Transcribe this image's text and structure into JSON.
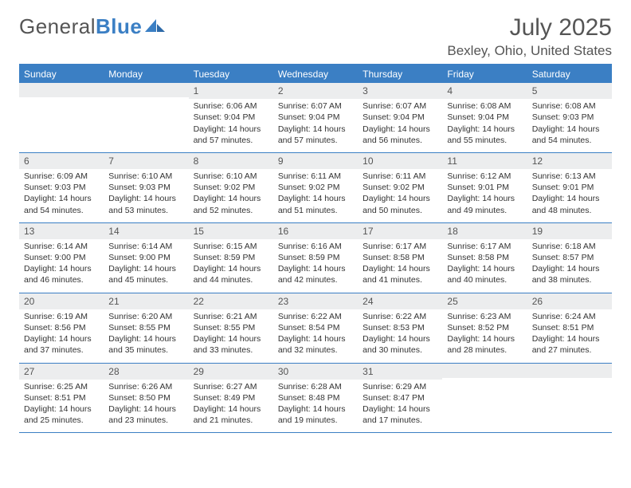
{
  "logo": {
    "text1": "General",
    "text2": "Blue"
  },
  "title": "July 2025",
  "location": "Bexley, Ohio, United States",
  "day_names": [
    "Sunday",
    "Monday",
    "Tuesday",
    "Wednesday",
    "Thursday",
    "Friday",
    "Saturday"
  ],
  "colors": {
    "accent": "#3b7fc4",
    "header_bg": "#3b7fc4",
    "header_text": "#ffffff",
    "daynum_bg": "#ecedee",
    "text": "#333333",
    "page_bg": "#ffffff"
  },
  "weeks": [
    [
      {
        "n": "",
        "sr": "",
        "ss": "",
        "dl": ""
      },
      {
        "n": "",
        "sr": "",
        "ss": "",
        "dl": ""
      },
      {
        "n": "1",
        "sr": "Sunrise: 6:06 AM",
        "ss": "Sunset: 9:04 PM",
        "dl": "Daylight: 14 hours and 57 minutes."
      },
      {
        "n": "2",
        "sr": "Sunrise: 6:07 AM",
        "ss": "Sunset: 9:04 PM",
        "dl": "Daylight: 14 hours and 57 minutes."
      },
      {
        "n": "3",
        "sr": "Sunrise: 6:07 AM",
        "ss": "Sunset: 9:04 PM",
        "dl": "Daylight: 14 hours and 56 minutes."
      },
      {
        "n": "4",
        "sr": "Sunrise: 6:08 AM",
        "ss": "Sunset: 9:04 PM",
        "dl": "Daylight: 14 hours and 55 minutes."
      },
      {
        "n": "5",
        "sr": "Sunrise: 6:08 AM",
        "ss": "Sunset: 9:03 PM",
        "dl": "Daylight: 14 hours and 54 minutes."
      }
    ],
    [
      {
        "n": "6",
        "sr": "Sunrise: 6:09 AM",
        "ss": "Sunset: 9:03 PM",
        "dl": "Daylight: 14 hours and 54 minutes."
      },
      {
        "n": "7",
        "sr": "Sunrise: 6:10 AM",
        "ss": "Sunset: 9:03 PM",
        "dl": "Daylight: 14 hours and 53 minutes."
      },
      {
        "n": "8",
        "sr": "Sunrise: 6:10 AM",
        "ss": "Sunset: 9:02 PM",
        "dl": "Daylight: 14 hours and 52 minutes."
      },
      {
        "n": "9",
        "sr": "Sunrise: 6:11 AM",
        "ss": "Sunset: 9:02 PM",
        "dl": "Daylight: 14 hours and 51 minutes."
      },
      {
        "n": "10",
        "sr": "Sunrise: 6:11 AM",
        "ss": "Sunset: 9:02 PM",
        "dl": "Daylight: 14 hours and 50 minutes."
      },
      {
        "n": "11",
        "sr": "Sunrise: 6:12 AM",
        "ss": "Sunset: 9:01 PM",
        "dl": "Daylight: 14 hours and 49 minutes."
      },
      {
        "n": "12",
        "sr": "Sunrise: 6:13 AM",
        "ss": "Sunset: 9:01 PM",
        "dl": "Daylight: 14 hours and 48 minutes."
      }
    ],
    [
      {
        "n": "13",
        "sr": "Sunrise: 6:14 AM",
        "ss": "Sunset: 9:00 PM",
        "dl": "Daylight: 14 hours and 46 minutes."
      },
      {
        "n": "14",
        "sr": "Sunrise: 6:14 AM",
        "ss": "Sunset: 9:00 PM",
        "dl": "Daylight: 14 hours and 45 minutes."
      },
      {
        "n": "15",
        "sr": "Sunrise: 6:15 AM",
        "ss": "Sunset: 8:59 PM",
        "dl": "Daylight: 14 hours and 44 minutes."
      },
      {
        "n": "16",
        "sr": "Sunrise: 6:16 AM",
        "ss": "Sunset: 8:59 PM",
        "dl": "Daylight: 14 hours and 42 minutes."
      },
      {
        "n": "17",
        "sr": "Sunrise: 6:17 AM",
        "ss": "Sunset: 8:58 PM",
        "dl": "Daylight: 14 hours and 41 minutes."
      },
      {
        "n": "18",
        "sr": "Sunrise: 6:17 AM",
        "ss": "Sunset: 8:58 PM",
        "dl": "Daylight: 14 hours and 40 minutes."
      },
      {
        "n": "19",
        "sr": "Sunrise: 6:18 AM",
        "ss": "Sunset: 8:57 PM",
        "dl": "Daylight: 14 hours and 38 minutes."
      }
    ],
    [
      {
        "n": "20",
        "sr": "Sunrise: 6:19 AM",
        "ss": "Sunset: 8:56 PM",
        "dl": "Daylight: 14 hours and 37 minutes."
      },
      {
        "n": "21",
        "sr": "Sunrise: 6:20 AM",
        "ss": "Sunset: 8:55 PM",
        "dl": "Daylight: 14 hours and 35 minutes."
      },
      {
        "n": "22",
        "sr": "Sunrise: 6:21 AM",
        "ss": "Sunset: 8:55 PM",
        "dl": "Daylight: 14 hours and 33 minutes."
      },
      {
        "n": "23",
        "sr": "Sunrise: 6:22 AM",
        "ss": "Sunset: 8:54 PM",
        "dl": "Daylight: 14 hours and 32 minutes."
      },
      {
        "n": "24",
        "sr": "Sunrise: 6:22 AM",
        "ss": "Sunset: 8:53 PM",
        "dl": "Daylight: 14 hours and 30 minutes."
      },
      {
        "n": "25",
        "sr": "Sunrise: 6:23 AM",
        "ss": "Sunset: 8:52 PM",
        "dl": "Daylight: 14 hours and 28 minutes."
      },
      {
        "n": "26",
        "sr": "Sunrise: 6:24 AM",
        "ss": "Sunset: 8:51 PM",
        "dl": "Daylight: 14 hours and 27 minutes."
      }
    ],
    [
      {
        "n": "27",
        "sr": "Sunrise: 6:25 AM",
        "ss": "Sunset: 8:51 PM",
        "dl": "Daylight: 14 hours and 25 minutes."
      },
      {
        "n": "28",
        "sr": "Sunrise: 6:26 AM",
        "ss": "Sunset: 8:50 PM",
        "dl": "Daylight: 14 hours and 23 minutes."
      },
      {
        "n": "29",
        "sr": "Sunrise: 6:27 AM",
        "ss": "Sunset: 8:49 PM",
        "dl": "Daylight: 14 hours and 21 minutes."
      },
      {
        "n": "30",
        "sr": "Sunrise: 6:28 AM",
        "ss": "Sunset: 8:48 PM",
        "dl": "Daylight: 14 hours and 19 minutes."
      },
      {
        "n": "31",
        "sr": "Sunrise: 6:29 AM",
        "ss": "Sunset: 8:47 PM",
        "dl": "Daylight: 14 hours and 17 minutes."
      },
      {
        "n": "",
        "sr": "",
        "ss": "",
        "dl": ""
      },
      {
        "n": "",
        "sr": "",
        "ss": "",
        "dl": ""
      }
    ]
  ]
}
